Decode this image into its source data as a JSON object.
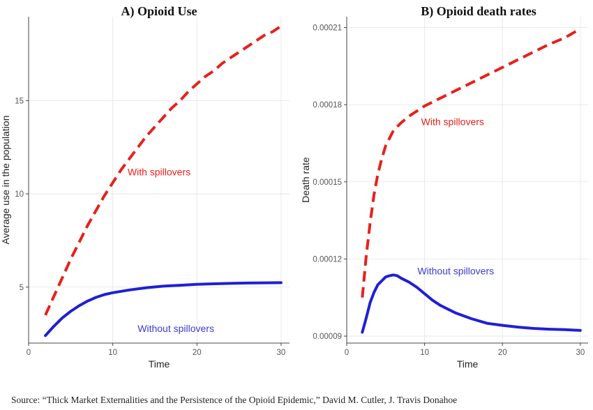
{
  "source": "Source: “Thick Market Externalities and the Persistence of the Opioid Epidemic,” David M. Cutler, J. Travis Donahoe",
  "colors": {
    "with": "#e8201a",
    "without": "#1f1fd6",
    "without_label": "#3a3ad8"
  },
  "chart_data": [
    {
      "type": "line",
      "title": "A) Opioid Use",
      "xlabel": "Time",
      "ylabel": "Average use in the population",
      "xlim": [
        0,
        31
      ],
      "ylim": [
        2.0,
        19.5
      ],
      "xticks": [
        0,
        10,
        20,
        30
      ],
      "yticks": [
        5,
        10,
        15
      ],
      "xtick_labels": [
        "0",
        "10",
        "20",
        "30"
      ],
      "ytick_labels": [
        "5",
        "10",
        "15"
      ],
      "grid": true,
      "series": [
        {
          "name": "With spillovers",
          "style": "dashed",
          "color": "#e8201a",
          "label_at": [
            15.5,
            11.0
          ],
          "x": [
            2,
            3,
            4,
            5,
            6,
            7,
            8,
            9,
            10,
            11,
            12,
            13,
            14,
            15,
            16,
            17,
            18,
            19,
            20,
            21,
            22,
            23,
            24,
            25,
            26,
            27,
            28,
            29,
            30
          ],
          "y": [
            3.5,
            4.5,
            5.5,
            6.5,
            7.4,
            8.3,
            9.1,
            9.9,
            10.6,
            11.3,
            11.9,
            12.5,
            13.1,
            13.6,
            14.1,
            14.6,
            15.0,
            15.5,
            15.9,
            16.3,
            16.6,
            17.0,
            17.3,
            17.6,
            17.9,
            18.2,
            18.5,
            18.7,
            19.0
          ]
        },
        {
          "name": "Without spillovers",
          "style": "solid",
          "color": "#1f1fd6",
          "label_at": [
            17.5,
            2.6
          ],
          "x": [
            2,
            3,
            4,
            5,
            6,
            7,
            8,
            9,
            10,
            12,
            14,
            16,
            18,
            20,
            22,
            24,
            26,
            28,
            30
          ],
          "y": [
            2.4,
            2.9,
            3.35,
            3.7,
            4.0,
            4.25,
            4.45,
            4.6,
            4.7,
            4.85,
            4.97,
            5.05,
            5.1,
            5.15,
            5.18,
            5.2,
            5.22,
            5.23,
            5.24
          ]
        }
      ]
    },
    {
      "type": "line",
      "title": "B) Opioid death rates",
      "xlabel": "Time",
      "ylabel": "Death rate",
      "xlim": [
        0,
        31
      ],
      "ylim": [
        8.73e-05,
        0.0002142
      ],
      "xticks": [
        0,
        10,
        20,
        30
      ],
      "yticks": [
        9e-05,
        0.00012,
        0.00015,
        0.00018,
        0.00021
      ],
      "xtick_labels": [
        "0",
        "10",
        "20",
        "30"
      ],
      "ytick_labels": [
        "0.00009",
        "0.00012",
        "0.00015",
        "0.00018",
        "0.00021"
      ],
      "grid": true,
      "series": [
        {
          "name": "With spillovers",
          "style": "dashed",
          "color": "#e8201a",
          "label_at": [
            13.6,
            0.000172
          ],
          "x": [
            2,
            2.5,
            3,
            3.5,
            4,
            4.5,
            5,
            5.5,
            6,
            7,
            8,
            9,
            10,
            12,
            14,
            16,
            18,
            20,
            22,
            24,
            26,
            28,
            30
          ],
          "y": [
            0.000105,
            0.000121,
            0.000134,
            0.000145,
            0.000153,
            0.000159,
            0.000164,
            0.000167,
            0.00017,
            0.000173,
            0.0001755,
            0.0001775,
            0.0001795,
            0.0001825,
            0.0001855,
            0.0001885,
            0.0001915,
            0.0001945,
            0.0001975,
            0.0002005,
            0.0002035,
            0.000206,
            0.0002095
          ]
        },
        {
          "name": "Without spillovers",
          "style": "solid",
          "color": "#1f1fd6",
          "label_at": [
            14.0,
            0.000114
          ],
          "x": [
            2,
            2.5,
            3,
            3.5,
            4,
            4.5,
            5,
            5.5,
            6,
            6.5,
            7,
            8,
            9,
            10,
            11,
            12,
            14,
            16,
            18,
            20,
            22,
            24,
            26,
            28,
            30
          ],
          "y": [
            9.15e-05,
            9.7e-05,
            0.000103,
            0.000107,
            0.00011,
            0.0001115,
            0.000113,
            0.0001135,
            0.0001138,
            0.0001135,
            0.0001125,
            0.000111,
            0.000109,
            0.0001065,
            0.000104,
            0.000102,
            9.9e-05,
            9.68e-05,
            9.5e-05,
            9.42e-05,
            9.35e-05,
            9.3e-05,
            9.27e-05,
            9.25e-05,
            9.22e-05
          ]
        }
      ]
    }
  ]
}
